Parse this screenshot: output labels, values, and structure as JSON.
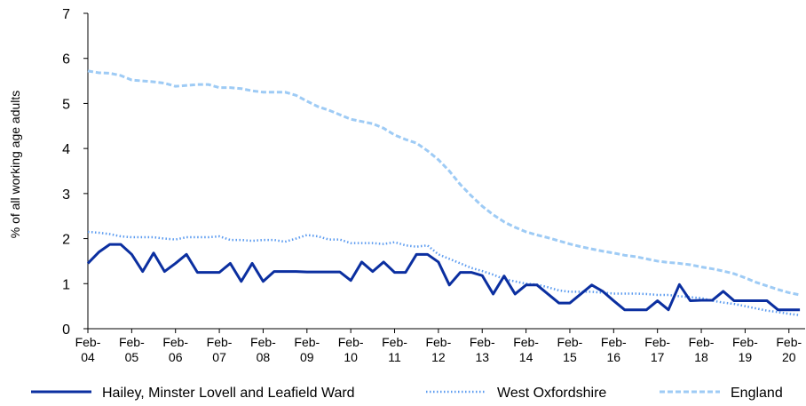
{
  "chart_data": {
    "type": "line",
    "y_label": "% of all working age adults",
    "categories": [
      "Feb-04",
      null,
      null,
      null,
      "Feb-05",
      null,
      null,
      null,
      "Feb-06",
      null,
      null,
      null,
      "Feb-07",
      null,
      null,
      null,
      "Feb-08",
      null,
      null,
      null,
      "Feb-09",
      null,
      null,
      null,
      "Feb-10",
      null,
      null,
      null,
      "Feb-11",
      null,
      null,
      null,
      "Feb-12",
      null,
      null,
      null,
      "Feb-13",
      null,
      null,
      null,
      "Feb-14",
      null,
      null,
      null,
      "Feb-15",
      null,
      null,
      null,
      "Feb-16",
      null,
      null,
      null,
      "Feb-17",
      null,
      null,
      null,
      "Feb-18",
      null,
      null,
      null,
      "Feb-19",
      null,
      null,
      null,
      "Feb-20",
      null
    ],
    "series": [
      {
        "name": "Hailey, Minster Lovell and Leafield Ward",
        "color": "#0b2fa0",
        "line_style": "solid",
        "values": [
          1.45,
          1.7,
          1.87,
          1.87,
          1.65,
          1.27,
          1.68,
          1.27,
          1.45,
          1.65,
          1.25,
          1.25,
          1.25,
          1.45,
          1.05,
          1.45,
          1.05,
          1.27,
          1.27,
          1.27,
          1.26,
          1.26,
          1.26,
          1.26,
          1.07,
          1.48,
          1.27,
          1.48,
          1.25,
          1.25,
          1.65,
          1.65,
          1.48,
          0.97,
          1.25,
          1.25,
          1.18,
          0.77,
          1.17,
          0.77,
          0.97,
          0.97,
          0.77,
          0.57,
          0.57,
          0.77,
          0.97,
          0.83,
          0.62,
          0.42,
          0.42,
          0.42,
          0.62,
          0.42,
          0.98,
          0.62,
          0.63,
          0.63,
          0.83,
          0.62,
          0.62,
          0.62,
          0.62,
          0.42,
          0.42,
          0.42
        ]
      },
      {
        "name": "West Oxfordshire",
        "color": "#5b9bf0",
        "line_style": "dotted",
        "values": [
          2.15,
          2.13,
          2.1,
          2.05,
          2.03,
          2.03,
          2.03,
          2.0,
          1.98,
          2.03,
          2.03,
          2.03,
          2.05,
          1.97,
          1.97,
          1.95,
          1.97,
          1.97,
          1.93,
          2.0,
          2.08,
          2.05,
          1.98,
          1.98,
          1.9,
          1.9,
          1.9,
          1.88,
          1.92,
          1.85,
          1.82,
          1.85,
          1.65,
          1.55,
          1.45,
          1.35,
          1.28,
          1.2,
          1.1,
          1.05,
          1.0,
          0.98,
          0.92,
          0.85,
          0.82,
          0.82,
          0.82,
          0.8,
          0.78,
          0.78,
          0.78,
          0.77,
          0.75,
          0.75,
          0.72,
          0.7,
          0.68,
          0.62,
          0.58,
          0.55,
          0.5,
          0.45,
          0.4,
          0.37,
          0.33,
          0.3
        ]
      },
      {
        "name": "England",
        "color": "#9ecbf5",
        "line_style": "dashed",
        "values": [
          5.72,
          5.68,
          5.67,
          5.62,
          5.52,
          5.5,
          5.48,
          5.45,
          5.38,
          5.4,
          5.42,
          5.42,
          5.35,
          5.35,
          5.33,
          5.28,
          5.25,
          5.25,
          5.25,
          5.18,
          5.05,
          4.93,
          4.85,
          4.75,
          4.65,
          4.6,
          4.55,
          4.45,
          4.3,
          4.2,
          4.12,
          3.95,
          3.75,
          3.5,
          3.2,
          2.95,
          2.72,
          2.53,
          2.37,
          2.25,
          2.15,
          2.08,
          2.02,
          1.95,
          1.88,
          1.82,
          1.77,
          1.72,
          1.68,
          1.63,
          1.6,
          1.55,
          1.5,
          1.47,
          1.45,
          1.42,
          1.37,
          1.33,
          1.28,
          1.22,
          1.13,
          1.03,
          0.95,
          0.87,
          0.8,
          0.75
        ]
      }
    ],
    "ylim": [
      0,
      7
    ],
    "yticks": [
      0,
      1,
      2,
      3,
      4,
      5,
      6,
      7
    ],
    "grid": false,
    "legend": "bottom"
  }
}
